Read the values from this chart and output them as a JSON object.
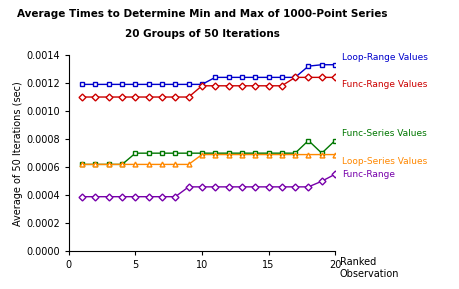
{
  "title1": "Average Times to Determine Min and Max of 1000-Point Series",
  "title2": "20 Groups of 50 Iterations",
  "xlabel1": "Ranked",
  "xlabel2": "Observation",
  "ylabel": "Average of 50 Iterations (sec)",
  "xlim": [
    0,
    20
  ],
  "ylim": [
    0,
    0.0014
  ],
  "x": [
    1,
    2,
    3,
    4,
    5,
    6,
    7,
    8,
    9,
    10,
    11,
    12,
    13,
    14,
    15,
    16,
    17,
    18,
    19,
    20
  ],
  "loop_range_values": [
    0.00119,
    0.00119,
    0.00119,
    0.00119,
    0.00119,
    0.00119,
    0.00119,
    0.00119,
    0.00119,
    0.00119,
    0.00124,
    0.00124,
    0.00124,
    0.00124,
    0.00124,
    0.00124,
    0.00124,
    0.00132,
    0.00133,
    0.00133
  ],
  "func_range_values": [
    0.0011,
    0.0011,
    0.0011,
    0.0011,
    0.0011,
    0.0011,
    0.0011,
    0.0011,
    0.0011,
    0.00118,
    0.00118,
    0.00118,
    0.00118,
    0.00118,
    0.00118,
    0.00118,
    0.00124,
    0.00124,
    0.00124,
    0.00124
  ],
  "func_series_values": [
    0.00062,
    0.00062,
    0.00062,
    0.00062,
    0.0007,
    0.0007,
    0.0007,
    0.0007,
    0.0007,
    0.0007,
    0.0007,
    0.0007,
    0.0007,
    0.0007,
    0.0007,
    0.0007,
    0.0007,
    0.00079,
    0.0007,
    0.00079
  ],
  "loop_series_values": [
    0.00062,
    0.00062,
    0.00062,
    0.00062,
    0.00062,
    0.00062,
    0.00062,
    0.00062,
    0.00062,
    0.00069,
    0.00069,
    0.00069,
    0.00069,
    0.00069,
    0.00069,
    0.00069,
    0.00069,
    0.00069,
    0.00069,
    0.00069
  ],
  "func_range": [
    0.00039,
    0.00039,
    0.00039,
    0.00039,
    0.00039,
    0.00039,
    0.00039,
    0.00039,
    0.00046,
    0.00046,
    0.00046,
    0.00046,
    0.00046,
    0.00046,
    0.00046,
    0.00046,
    0.00046,
    0.00046,
    0.0005,
    0.00055
  ],
  "color_loop_range": "#0000CC",
  "color_func_range_values": "#CC0000",
  "color_func_series": "#007700",
  "color_loop_series": "#FF8800",
  "color_func_range": "#7700AA",
  "legend_labels": [
    "Loop-Range Values",
    "Func-Range Values",
    "Func-Series Values",
    "Loop-Series Values",
    "Func-Range"
  ],
  "background_color": "#FFFFFF",
  "xticks": [
    0,
    5,
    10,
    15,
    20
  ],
  "yticks": [
    0.0,
    0.0002,
    0.0004,
    0.0006,
    0.0008,
    0.001,
    0.0012,
    0.0014
  ]
}
